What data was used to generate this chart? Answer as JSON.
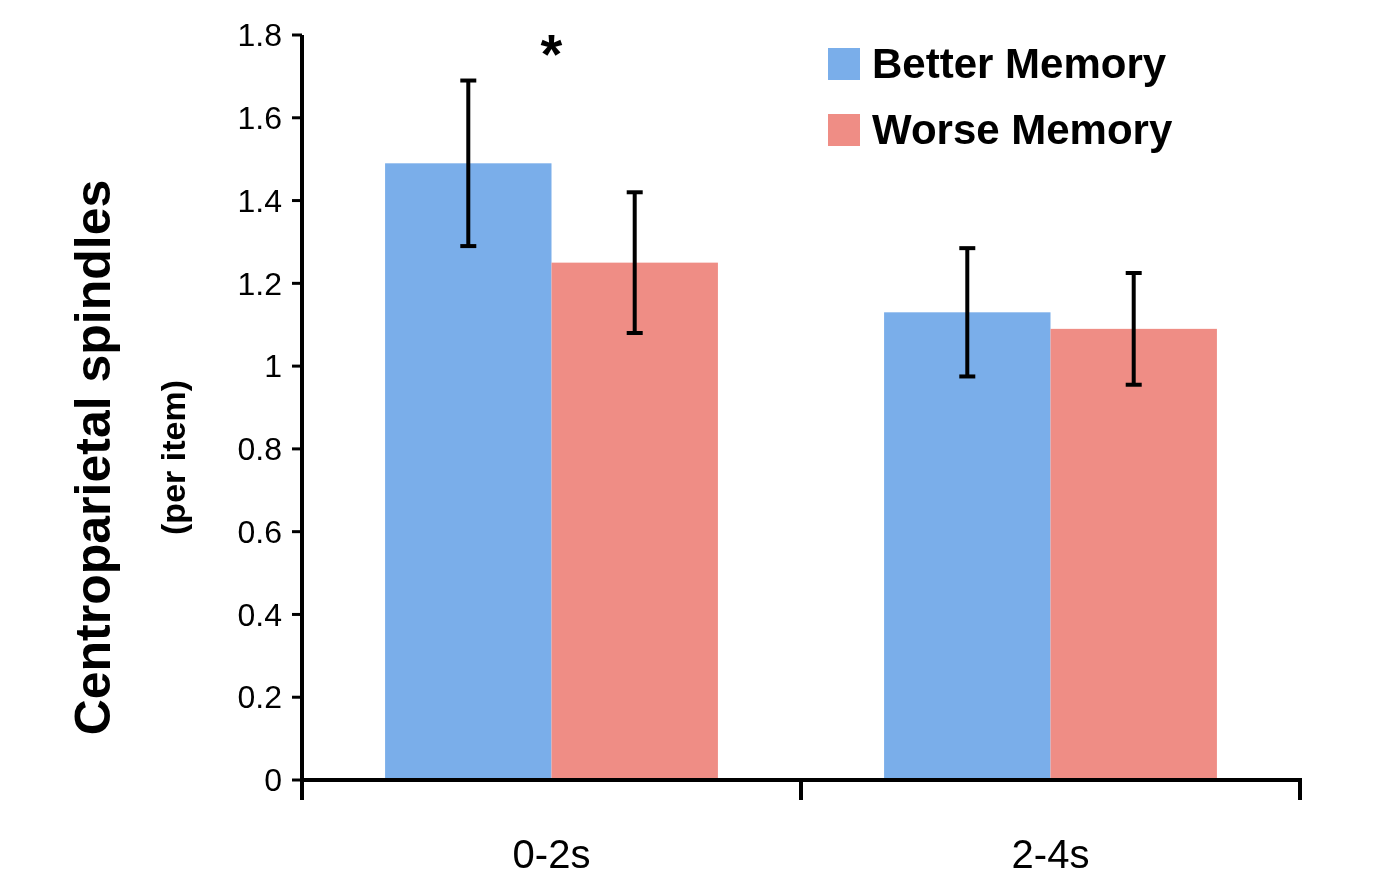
{
  "chart_data": {
    "type": "bar",
    "categories": [
      "0-2s",
      "2-4s"
    ],
    "series": [
      {
        "name": "Better Memory",
        "color": "#7aaeea",
        "values": [
          1.49,
          1.13
        ],
        "errors": [
          0.2,
          0.155
        ]
      },
      {
        "name": "Worse Memory",
        "color": "#ef8d85",
        "values": [
          1.25,
          1.09
        ],
        "errors": [
          0.17,
          0.135
        ]
      }
    ],
    "ylabel": "Centroparietal spindles\n(per item)",
    "ylim": [
      0,
      1.8
    ],
    "yticks": [
      0,
      0.2,
      0.4,
      0.6,
      0.8,
      1,
      1.2,
      1.4,
      1.6,
      1.8
    ],
    "annotations": [
      "*"
    ],
    "legend": "top right",
    "grid": false
  }
}
